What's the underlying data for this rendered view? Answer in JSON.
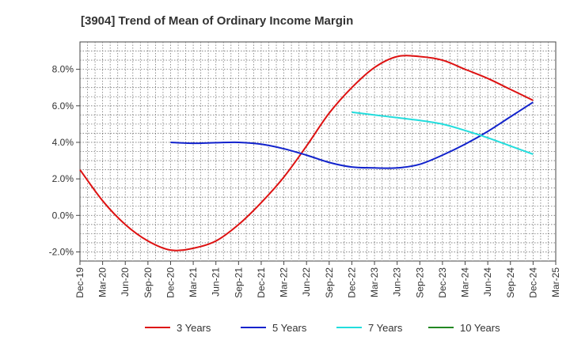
{
  "chart_data": {
    "type": "line",
    "title": "[3904]  Trend of Mean of Ordinary Income Margin",
    "xlabel": "",
    "ylabel": "",
    "ylim": [
      -2.5,
      9.5
    ],
    "y_ticks": [
      -2.0,
      0.0,
      2.0,
      4.0,
      6.0,
      8.0
    ],
    "y_tick_labels": [
      "-2.0%",
      "0.0%",
      "2.0%",
      "4.0%",
      "6.0%",
      "8.0%"
    ],
    "categories": [
      "Dec-19",
      "Mar-20",
      "Jun-20",
      "Sep-20",
      "Dec-20",
      "Mar-21",
      "Jun-21",
      "Sep-21",
      "Dec-21",
      "Mar-22",
      "Jun-22",
      "Sep-22",
      "Dec-22",
      "Mar-23",
      "Jun-23",
      "Sep-23",
      "Dec-23",
      "Mar-24",
      "Jun-24",
      "Sep-24",
      "Dec-24",
      "Mar-25"
    ],
    "grid": true,
    "legend_position": "bottom",
    "series": [
      {
        "name": "3 Years",
        "color": "#dd1111",
        "values": [
          2.5,
          0.8,
          -0.5,
          -1.4,
          -1.9,
          -1.8,
          -1.4,
          -0.5,
          0.7,
          2.1,
          3.8,
          5.6,
          7.0,
          8.1,
          8.7,
          8.7,
          8.5,
          8.0,
          7.5,
          6.9,
          6.3,
          null
        ]
      },
      {
        "name": "5 Years",
        "color": "#1122cc",
        "values": [
          null,
          null,
          null,
          null,
          4.0,
          3.95,
          3.98,
          4.0,
          3.9,
          3.65,
          3.3,
          2.9,
          2.65,
          2.6,
          2.6,
          2.8,
          3.3,
          3.9,
          4.6,
          5.4,
          6.2,
          null
        ]
      },
      {
        "name": "7 Years",
        "color": "#22dddd",
        "values": [
          null,
          null,
          null,
          null,
          null,
          null,
          null,
          null,
          null,
          null,
          null,
          null,
          5.65,
          5.5,
          5.35,
          5.2,
          5.0,
          4.65,
          4.25,
          3.8,
          3.35,
          null
        ]
      },
      {
        "name": "10 Years",
        "color": "#228822",
        "values": [
          null,
          null,
          null,
          null,
          null,
          null,
          null,
          null,
          null,
          null,
          null,
          null,
          null,
          null,
          null,
          null,
          null,
          null,
          null,
          null,
          null,
          null
        ]
      }
    ]
  }
}
